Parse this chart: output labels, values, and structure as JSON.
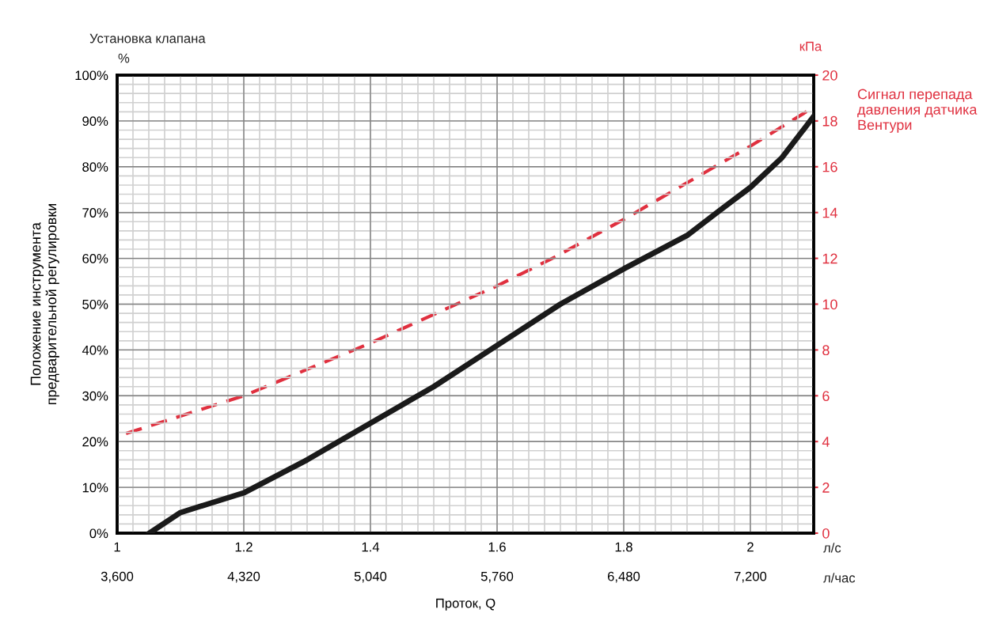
{
  "chart_data": {
    "type": "line",
    "xlabel": "Проток, Q",
    "ylabel": "Положение инструмента\nпредварительной регулировки",
    "y2label": "Сигнал перепада\nдавления датчика\nВентури",
    "annotations": [
      "Установка клапана",
      "%",
      "кПа",
      "л/с",
      "л/час"
    ],
    "xlim": [
      1,
      2.1
    ],
    "xticks": [
      1,
      1.2,
      1.4,
      1.6,
      1.8,
      2
    ],
    "x2lim": [
      3600,
      7560
    ],
    "x2ticks": [
      {
        "value": 3600,
        "label": "3,600"
      },
      {
        "value": 4320,
        "label": "4,320"
      },
      {
        "value": 5040,
        "label": "5,040"
      },
      {
        "value": 5760,
        "label": "5,760"
      },
      {
        "value": 6480,
        "label": "6,480"
      },
      {
        "value": 7200,
        "label": "7,200"
      }
    ],
    "ylim": [
      0,
      100
    ],
    "yticks": [
      {
        "value": 0,
        "label": "0%"
      },
      {
        "value": 10,
        "label": "10%"
      },
      {
        "value": 20,
        "label": "20%"
      },
      {
        "value": 30,
        "label": "30%"
      },
      {
        "value": 40,
        "label": "40%"
      },
      {
        "value": 50,
        "label": "50%"
      },
      {
        "value": 60,
        "label": "60%"
      },
      {
        "value": 70,
        "label": "70%"
      },
      {
        "value": 80,
        "label": "80%"
      },
      {
        "value": 90,
        "label": "90%"
      },
      {
        "value": 100,
        "label": "100%"
      }
    ],
    "y2lim": [
      0,
      20
    ],
    "y2ticks": [
      0,
      2,
      4,
      6,
      8,
      10,
      12,
      14,
      16,
      18,
      20
    ],
    "grid": true,
    "series": [
      {
        "color": "#1a1a1a",
        "line_style": "solid",
        "x": [
          1.051,
          1.1,
          1.2,
          1.3,
          1.4,
          1.5,
          1.6,
          1.7,
          1.8,
          1.9,
          1.95,
          2.0,
          2.05,
          2.1
        ],
        "values": [
          0,
          4.5,
          8.8,
          16,
          24,
          32,
          41,
          50,
          57.7,
          65,
          70.3,
          75.5,
          82,
          91
        ]
      },
      {
        "color": "#e0303f",
        "line_style": "dashed",
        "axis": "y2",
        "x": [
          1.014,
          1.2,
          1.4,
          1.6,
          1.691,
          1.8,
          2.0,
          2.1
        ],
        "values": [
          4.35,
          6.0,
          8.3,
          10.8,
          12.05,
          13.7,
          16.9,
          18.6
        ]
      }
    ]
  }
}
